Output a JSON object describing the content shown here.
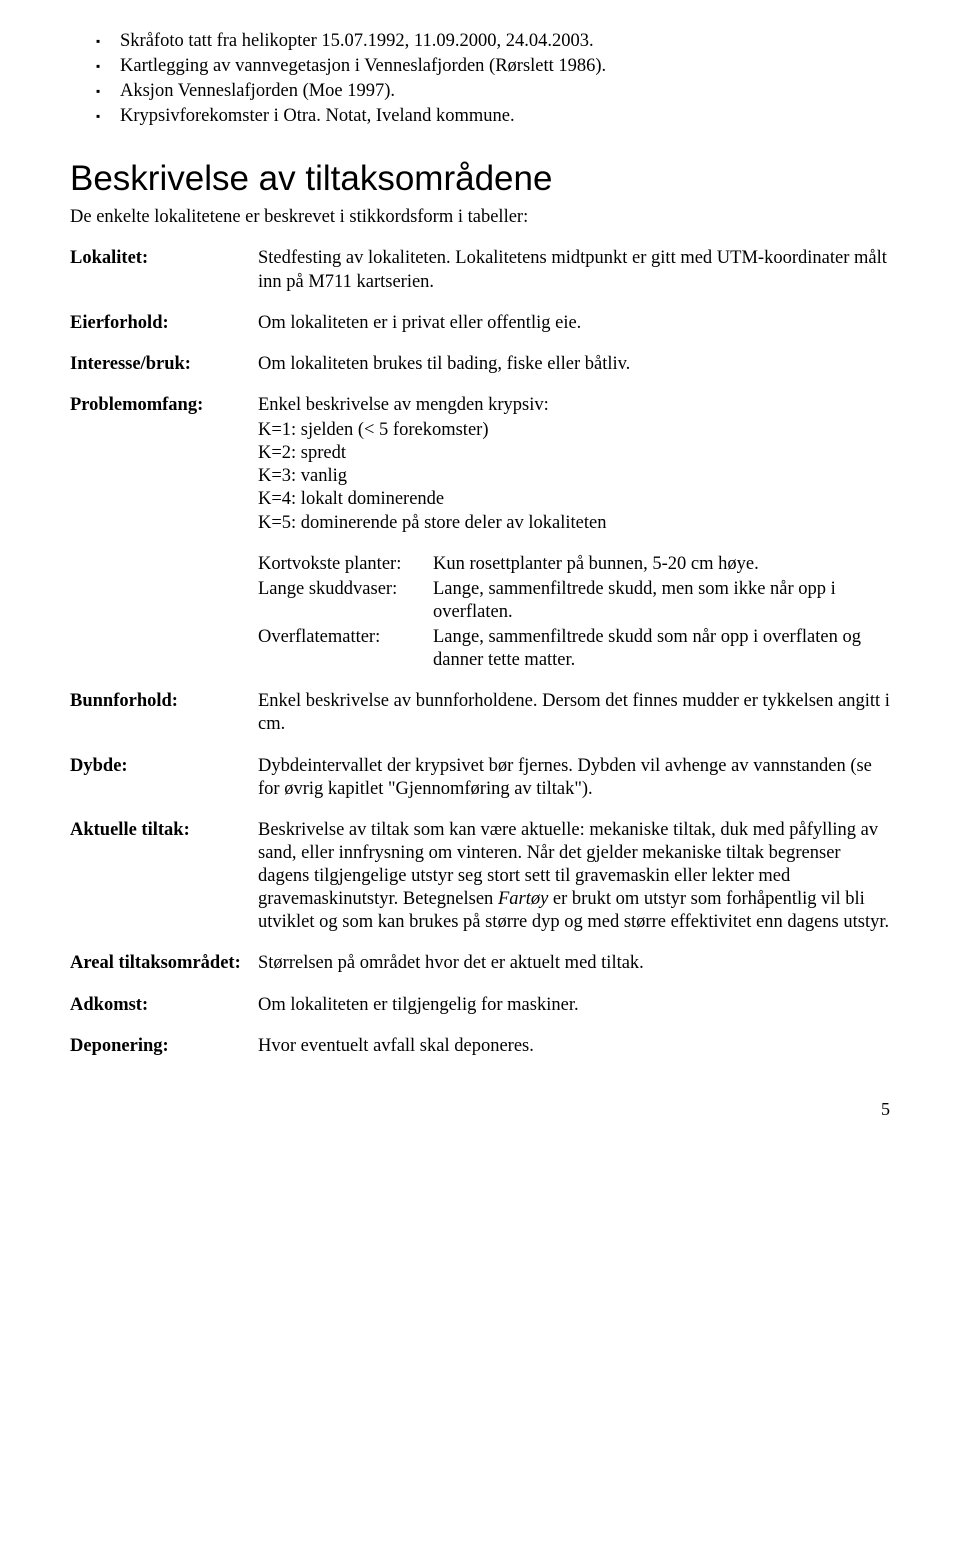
{
  "bullets": [
    "Skråfoto tatt fra helikopter 15.07.1992, 11.09.2000, 24.04.2003.",
    "Kartlegging av vannvegetasjon i Venneslafjorden (Rørslett 1986).",
    "Aksjon Venneslafjorden (Moe 1997).",
    "Krypsivforekomster i Otra. Notat, Iveland kommune."
  ],
  "heading": "Beskrivelse av tiltaksområdene",
  "intro": "De enkelte lokalitetene er beskrevet i stikkordsform i tabeller:",
  "defs": {
    "lokalitet": {
      "term": "Lokalitet:",
      "desc": "Stedfesting av lokaliteten. Lokalitetens midtpunkt er gitt med UTM-koordinater målt inn på M711 kartserien."
    },
    "eierforhold": {
      "term": "Eierforhold:",
      "desc": "Om lokaliteten er i privat eller offentlig eie."
    },
    "interesse": {
      "term": "Interesse/bruk:",
      "desc": "Om lokaliteten brukes til bading, fiske eller båtliv."
    },
    "problem": {
      "term": "Problemomfang:",
      "desc": "Enkel beskrivelse av mengden krypsiv:",
      "items": [
        "K=1: sjelden (< 5 forekomster)",
        "K=2: spredt",
        "K=3: vanlig",
        "K=4: lokalt dominerende",
        "K=5: dominerende på store deler av lokaliteten"
      ]
    },
    "nested": [
      {
        "term": "Kortvokste planter:",
        "desc": "Kun rosettplanter på bunnen, 5-20 cm høye."
      },
      {
        "term": "Lange skuddvaser:",
        "desc": "Lange, sammenfiltrede skudd, men som ikke når opp i overflaten."
      },
      {
        "term": "Overflatematter:",
        "desc": "Lange, sammenfiltrede skudd som når opp i overflaten og danner tette matter."
      }
    ],
    "bunnforhold": {
      "term": "Bunnforhold:",
      "desc": "Enkel beskrivelse av bunnforholdene. Dersom det finnes mudder er tykkelsen angitt i cm."
    },
    "dybde": {
      "term": "Dybde:",
      "desc": "Dybdeintervallet der krypsivet bør fjernes. Dybden vil avhenge av vannstanden (se for øvrig kapitlet \"Gjennomføring av tiltak\")."
    },
    "aktuelle": {
      "term": "Aktuelle tiltak:",
      "desc_pre": "Beskrivelse av tiltak som kan være aktuelle: mekaniske tiltak, duk med påfylling av sand, eller innfrysning om vinteren. Når det gjelder mekaniske tiltak begrenser dagens tilgjengelige utstyr seg stort sett til gravemaskin eller lekter med gravemaskinutstyr. Betegnelsen ",
      "desc_italic": "Fartøy",
      "desc_post": " er brukt om utstyr som forhåpentlig vil bli utviklet og som kan brukes på større dyp og med større effektivitet enn dagens utstyr."
    },
    "areal": {
      "term": "Areal tiltaksområdet:",
      "desc": "Størrelsen på området hvor det er aktuelt med tiltak."
    },
    "adkomst": {
      "term": "Adkomst:",
      "desc": "Om lokaliteten er tilgjengelig for maskiner."
    },
    "deponering": {
      "term": "Deponering:",
      "desc": "Hvor eventuelt avfall skal deponeres."
    }
  },
  "page_number": "5"
}
